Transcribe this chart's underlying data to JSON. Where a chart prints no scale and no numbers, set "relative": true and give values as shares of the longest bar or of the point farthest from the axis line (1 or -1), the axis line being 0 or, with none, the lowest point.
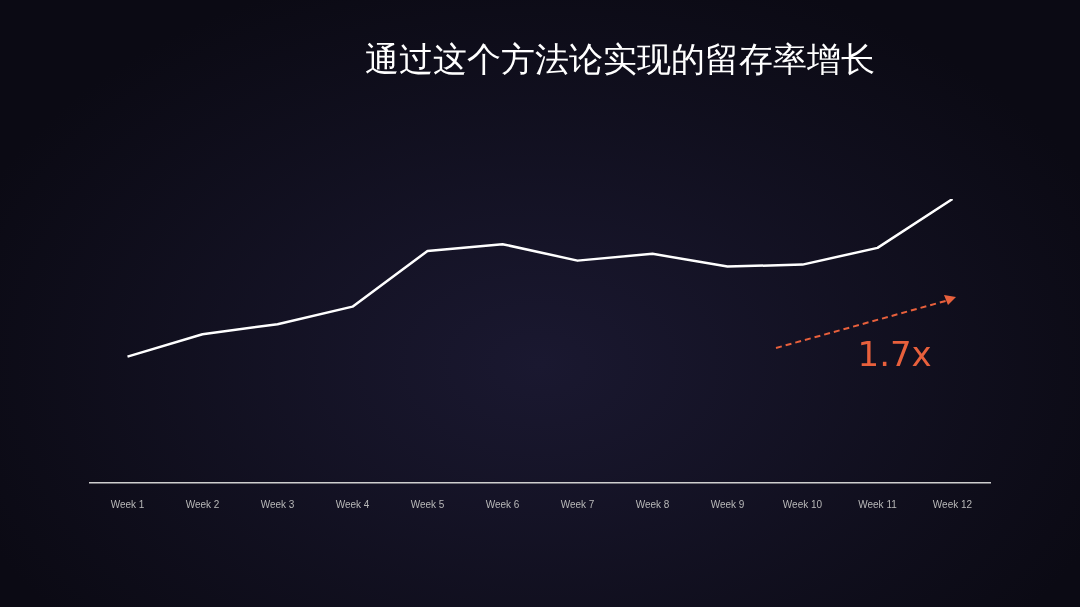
{
  "chart_data": {
    "type": "line",
    "title": "通过这个方法论实现的留存率增长",
    "relative": true,
    "categories": [
      "Week 1",
      "Week 2",
      "Week 3",
      "Week 4",
      "Week 5",
      "Week 6",
      "Week 7",
      "Week 8",
      "Week 9",
      "Week 10",
      "Week 11",
      "Week 12"
    ],
    "series": [
      {
        "color": "#ffffff",
        "values": [
          0.445,
          0.524,
          0.559,
          0.621,
          0.817,
          0.841,
          0.783,
          0.807,
          0.762,
          0.769,
          0.828,
          1
        ]
      }
    ],
    "annotations": [
      "1.7x"
    ],
    "grid": false,
    "legend": false,
    "marker": "none",
    "line_style": "solid"
  }
}
